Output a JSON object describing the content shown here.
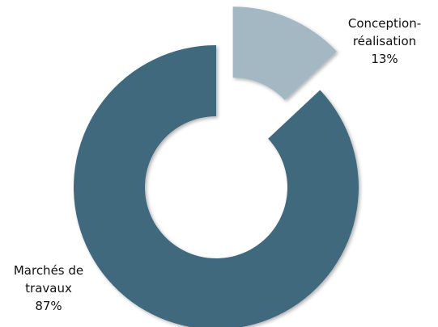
{
  "chart_data": {
    "type": "donut",
    "categories": [
      "Conception-réalisation",
      "Marchés de travaux"
    ],
    "values": [
      13,
      87
    ],
    "value_labels": [
      "13%",
      "87%"
    ],
    "colors": [
      "#a3b8c2",
      "#41697e"
    ],
    "exploded": [
      true,
      false
    ]
  }
}
